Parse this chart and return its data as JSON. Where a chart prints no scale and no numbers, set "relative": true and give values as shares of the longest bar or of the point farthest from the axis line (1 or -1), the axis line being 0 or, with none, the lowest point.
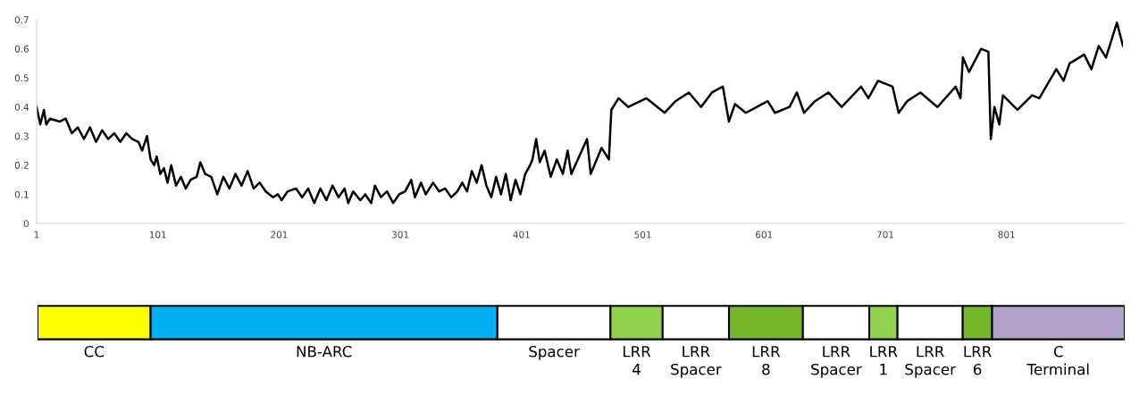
{
  "chart_data": [
    {
      "type": "line",
      "xlim": [
        1,
        897
      ],
      "ylim": [
        0,
        0.7
      ],
      "xticks": [
        1,
        101,
        201,
        301,
        401,
        501,
        601,
        701,
        801
      ],
      "yticks": [
        0,
        0.1,
        0.2,
        0.3,
        0.4,
        0.5,
        0.6,
        0.7
      ],
      "grid": false,
      "marker": "none",
      "line_style": "solid",
      "series": [
        {
          "color": "#000000",
          "x": [
            1,
            4,
            7,
            9,
            12,
            20,
            25,
            30,
            35,
            40,
            45,
            50,
            55,
            60,
            65,
            70,
            75,
            80,
            85,
            88,
            92,
            95,
            98,
            100,
            103,
            106,
            109,
            112,
            116,
            120,
            124,
            128,
            133,
            136,
            140,
            145,
            150,
            155,
            160,
            165,
            170,
            175,
            180,
            185,
            190,
            196,
            200,
            203,
            208,
            215,
            220,
            225,
            230,
            235,
            240,
            245,
            250,
            255,
            258,
            262,
            268,
            272,
            277,
            280,
            285,
            290,
            295,
            300,
            305,
            310,
            313,
            318,
            322,
            328,
            333,
            338,
            343,
            348,
            352,
            356,
            360,
            364,
            368,
            372,
            376,
            380,
            384,
            388,
            392,
            396,
            400,
            404,
            408,
            410,
            413,
            416,
            420,
            425,
            430,
            435,
            439,
            442,
            455,
            458,
            467,
            473,
            475,
            481,
            489,
            504,
            519,
            528,
            539,
            549,
            558,
            567,
            572,
            577,
            586,
            604,
            610,
            622,
            628,
            634,
            643,
            654,
            665,
            681,
            687,
            695,
            707,
            712,
            719,
            730,
            744,
            759,
            763,
            765,
            770,
            780,
            786,
            788,
            791,
            795,
            798,
            810,
            822,
            828,
            842,
            848,
            853,
            865,
            871,
            877,
            883,
            892,
            897
          ],
          "values": [
            0.4,
            0.34,
            0.39,
            0.34,
            0.36,
            0.35,
            0.36,
            0.31,
            0.33,
            0.29,
            0.33,
            0.28,
            0.32,
            0.29,
            0.31,
            0.28,
            0.31,
            0.29,
            0.28,
            0.25,
            0.3,
            0.22,
            0.2,
            0.23,
            0.17,
            0.19,
            0.14,
            0.2,
            0.13,
            0.16,
            0.12,
            0.15,
            0.16,
            0.21,
            0.17,
            0.16,
            0.1,
            0.16,
            0.12,
            0.17,
            0.13,
            0.18,
            0.12,
            0.14,
            0.11,
            0.09,
            0.1,
            0.08,
            0.11,
            0.12,
            0.09,
            0.12,
            0.07,
            0.12,
            0.08,
            0.13,
            0.09,
            0.12,
            0.07,
            0.11,
            0.08,
            0.1,
            0.07,
            0.13,
            0.09,
            0.11,
            0.07,
            0.1,
            0.11,
            0.15,
            0.09,
            0.14,
            0.1,
            0.14,
            0.11,
            0.12,
            0.09,
            0.11,
            0.14,
            0.11,
            0.18,
            0.14,
            0.2,
            0.13,
            0.09,
            0.16,
            0.1,
            0.17,
            0.08,
            0.15,
            0.1,
            0.17,
            0.2,
            0.22,
            0.29,
            0.21,
            0.25,
            0.16,
            0.22,
            0.17,
            0.25,
            0.17,
            0.29,
            0.17,
            0.26,
            0.22,
            0.39,
            0.43,
            0.4,
            0.43,
            0.38,
            0.42,
            0.45,
            0.4,
            0.45,
            0.47,
            0.35,
            0.41,
            0.38,
            0.42,
            0.38,
            0.4,
            0.45,
            0.38,
            0.42,
            0.45,
            0.4,
            0.47,
            0.43,
            0.49,
            0.47,
            0.38,
            0.42,
            0.45,
            0.4,
            0.47,
            0.43,
            0.57,
            0.52,
            0.6,
            0.59,
            0.29,
            0.4,
            0.34,
            0.44,
            0.39,
            0.44,
            0.43,
            0.53,
            0.49,
            0.55,
            0.58,
            0.53,
            0.61,
            0.57,
            0.69,
            0.61
          ]
        }
      ]
    },
    {
      "type": "bar",
      "orientation": "horizontal",
      "stacked": true,
      "relative": true,
      "categories": [
        null
      ],
      "legend": false,
      "series": [
        {
          "name": "CC",
          "color": "#ffff00",
          "values": [
            0.104
          ]
        },
        {
          "name": "NB-ARC",
          "color": "#00b0f0",
          "values": [
            0.319
          ]
        },
        {
          "name": "Spacer",
          "color": "#ffffff",
          "values": [
            0.104
          ]
        },
        {
          "name": "LRR 4",
          "color": "#92d050",
          "values": [
            0.048
          ]
        },
        {
          "name": "LRR Spacer",
          "color": "#ffffff",
          "values": [
            0.061
          ]
        },
        {
          "name": "LRR 8",
          "color": "#76b82a",
          "values": [
            0.068
          ]
        },
        {
          "name": "LRR Spacer",
          "color": "#ffffff",
          "values": [
            0.061
          ]
        },
        {
          "name": "LRR 1",
          "color": "#92d050",
          "values": [
            0.026
          ]
        },
        {
          "name": "LRR Spacer",
          "color": "#ffffff",
          "values": [
            0.06
          ]
        },
        {
          "name": "LRR 6",
          "color": "#76b82a",
          "values": [
            0.027
          ]
        },
        {
          "name": "C Terminal",
          "color": "#b1a0c7",
          "values": [
            0.122
          ]
        }
      ]
    }
  ]
}
